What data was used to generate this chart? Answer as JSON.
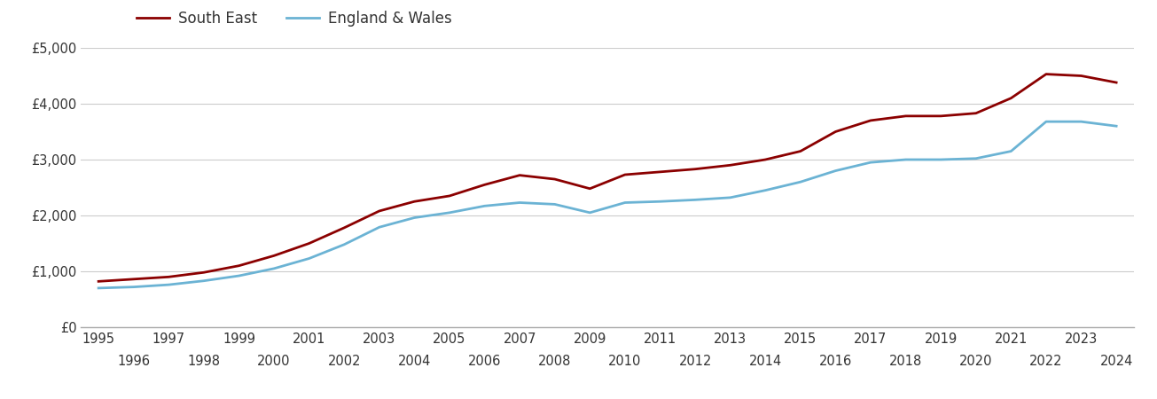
{
  "years": [
    1995,
    1996,
    1997,
    1998,
    1999,
    2000,
    2001,
    2002,
    2003,
    2004,
    2005,
    2006,
    2007,
    2008,
    2009,
    2010,
    2011,
    2012,
    2013,
    2014,
    2015,
    2016,
    2017,
    2018,
    2019,
    2020,
    2021,
    2022,
    2023,
    2024
  ],
  "south_east": [
    820,
    860,
    900,
    980,
    1100,
    1280,
    1500,
    1780,
    2080,
    2250,
    2350,
    2550,
    2720,
    2650,
    2480,
    2730,
    2780,
    2830,
    2900,
    3000,
    3150,
    3500,
    3700,
    3780,
    3780,
    3830,
    4100,
    4530,
    4500,
    4380
  ],
  "england_wales": [
    700,
    720,
    760,
    830,
    920,
    1050,
    1230,
    1480,
    1790,
    1960,
    2050,
    2170,
    2230,
    2200,
    2050,
    2230,
    2250,
    2280,
    2320,
    2450,
    2600,
    2800,
    2950,
    3000,
    3000,
    3020,
    3150,
    3680,
    3680,
    3600
  ],
  "south_east_color": "#8B0000",
  "england_wales_color": "#6BB3D4",
  "line_width": 2.0,
  "legend_labels": [
    "South East",
    "England & Wales"
  ],
  "ylim": [
    0,
    5000
  ],
  "ytick_values": [
    0,
    1000,
    2000,
    3000,
    4000,
    5000
  ],
  "ytick_labels": [
    "£0",
    "£1,000",
    "£2,000",
    "£3,000",
    "£4,000",
    "£5,000"
  ],
  "xtick_years_top": [
    1995,
    1997,
    1999,
    2001,
    2003,
    2005,
    2007,
    2009,
    2011,
    2013,
    2015,
    2017,
    2019,
    2021,
    2023
  ],
  "xtick_years_bottom": [
    1996,
    1998,
    2000,
    2002,
    2004,
    2006,
    2008,
    2010,
    2012,
    2014,
    2016,
    2018,
    2020,
    2022,
    2024
  ],
  "background_color": "#ffffff",
  "grid_color": "#cccccc",
  "tick_label_fontsize": 10.5,
  "legend_fontsize": 12
}
